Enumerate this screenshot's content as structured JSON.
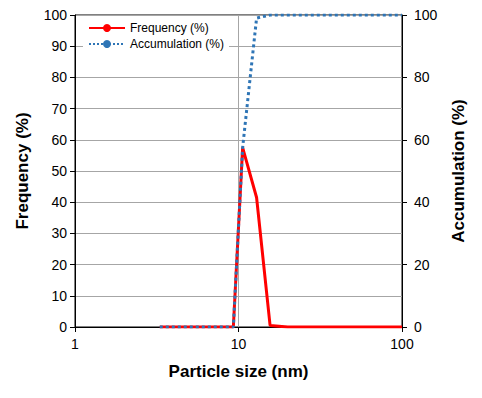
{
  "chart_data": {
    "type": "line",
    "x_label": "Particle size (nm)",
    "y_label": "Frequency (%)",
    "y2_label": "Accumulation (%)",
    "log": "x",
    "grid": true,
    "legend": "top-left",
    "xlim": [
      1,
      100
    ],
    "xticks": [
      1,
      10,
      100
    ],
    "ylim": [
      0,
      100
    ],
    "yticks": [
      0,
      10,
      20,
      30,
      40,
      50,
      60,
      70,
      80,
      90,
      100
    ],
    "y2lim": [
      0,
      100
    ],
    "y2ticks": [
      0,
      20,
      40,
      60,
      80,
      100
    ],
    "x": [
      3.3,
      9.3,
      10.6,
      12.9,
      15.6,
      20,
      100
    ],
    "series": [
      {
        "name": "Frequency (%)",
        "color": "#ff0000",
        "line_style": "solid",
        "marker": "none",
        "values": [
          0,
          0,
          57.5,
          41.5,
          0.5,
          0,
          0
        ]
      },
      {
        "name": "Accumulation (%)",
        "color": "#2e75b6",
        "line_style": "dotted",
        "marker": "none",
        "axis": "y2",
        "values": [
          0,
          0,
          57.5,
          99,
          100,
          100,
          100
        ]
      }
    ]
  }
}
